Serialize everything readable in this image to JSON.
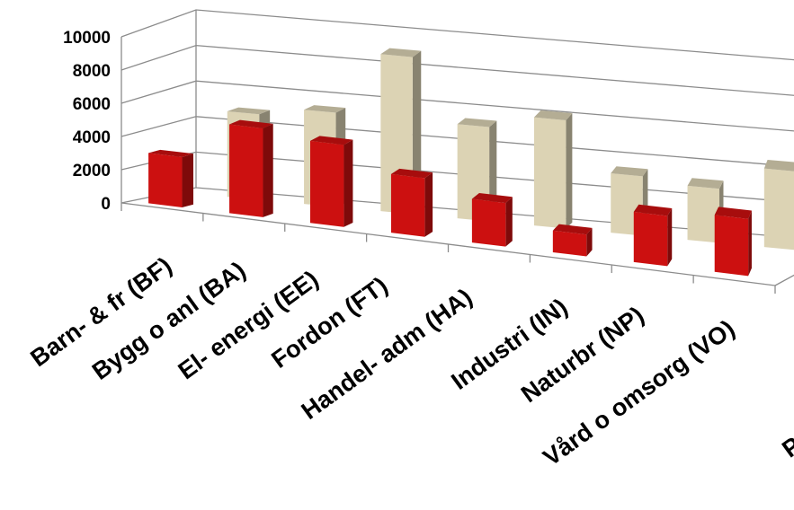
{
  "chart_data": {
    "type": "bar",
    "subtype": "3d-clustered-column",
    "categories": [
      "Barn- & fr (BF)",
      "Bygg o anl (BA)",
      "El- energi (EE)",
      "Fordon (FT)",
      "Handel- adm (HA)",
      "Industri (IN)",
      "Naturbr (NP)",
      "Vård o omsorg (VO)",
      "P"
    ],
    "series": [
      {
        "color": "#cc1010",
        "values": [
          3000,
          5300,
          4900,
          3500,
          2600,
          1300,
          3000,
          3400,
          null
        ]
      },
      {
        "color": "#dcd3b4",
        "values": [
          4900,
          5400,
          9000,
          5400,
          6200,
          3400,
          3100,
          4500,
          null
        ]
      }
    ],
    "yticks": [
      "0",
      "2000",
      "4000",
      "6000",
      "8000",
      "10000"
    ],
    "ylim": [
      0,
      10000
    ],
    "grid": true,
    "legend": "none",
    "title": "",
    "xlabel": "",
    "ylabel": ""
  }
}
